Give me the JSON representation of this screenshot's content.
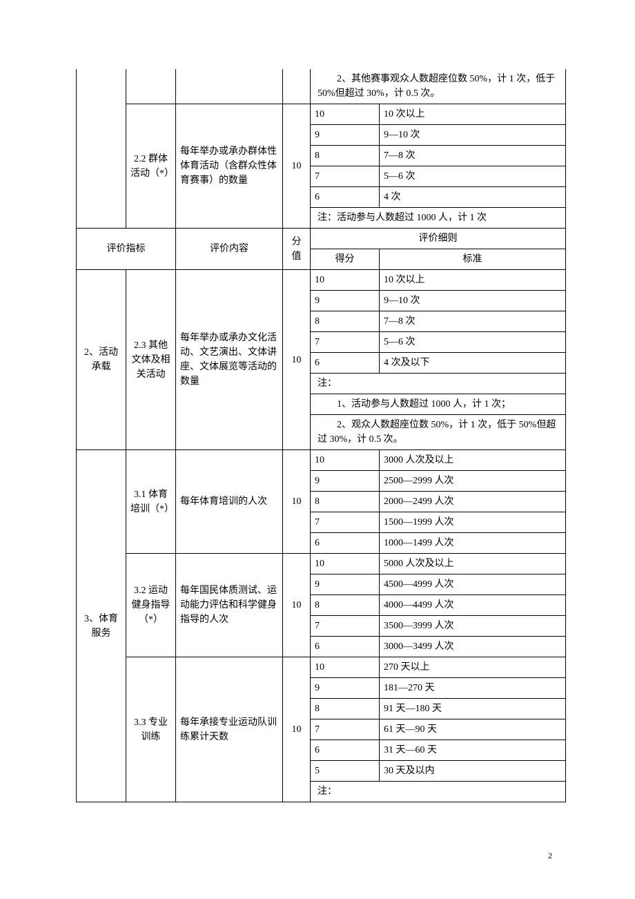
{
  "topNote": "　　2、其他赛事观众人数超座位数 50%，计 1 次，低于 50%但超过 30%，计 0.5 次。",
  "s22": {
    "label": "2.2 群体活动（*）",
    "content": "每年举办或承办群体性体育活动（含群众性体育赛事）的数量",
    "fen": "10",
    "rows": [
      {
        "score": "10",
        "std": "10 次以上"
      },
      {
        "score": "9",
        "std": "9—10 次"
      },
      {
        "score": "8",
        "std": "7—8 次"
      },
      {
        "score": "7",
        "std": "5—6 次"
      },
      {
        "score": "6",
        "std": "4 次"
      }
    ],
    "note": "注：活动参与人数超过 1000 人，计 1 次"
  },
  "hdr": {
    "c1": "评价指标",
    "c3": "评价内容",
    "c4": "分值",
    "c5": "评价细则",
    "c5a": "得分",
    "c5b": "标准"
  },
  "cat2": "2、活动承载",
  "s23": {
    "label": "2.3 其他文体及相关活动",
    "content": "每年举办或承办文化活动、文艺演出、文体讲座、文体展览等活动的数量",
    "fen": "10",
    "rows": [
      {
        "score": "10",
        "std": "10 次以上"
      },
      {
        "score": "9",
        "std": "9—10 次"
      },
      {
        "score": "8",
        "std": "7—8 次"
      },
      {
        "score": "7",
        "std": "5—6 次"
      },
      {
        "score": "6",
        "std": "4 次及以下"
      }
    ],
    "noteHead": "注：",
    "note1": "　　1、活动参与人数超过 1000 人，计 1 次；",
    "note2": "　　2、观众人数超座位数 50%，计 1 次，低于 50%但超过 30%，计 0.5 次。"
  },
  "cat3": "3、体育服务",
  "s31": {
    "label": "3.1 体育培训（*）",
    "content": "每年体育培训的人次",
    "fen": "10",
    "rows": [
      {
        "score": "10",
        "std": "3000 人次及以上"
      },
      {
        "score": "9",
        "std": "2500—2999 人次"
      },
      {
        "score": "8",
        "std": "2000—2499 人次"
      },
      {
        "score": "7",
        "std": "1500—1999 人次"
      },
      {
        "score": "6",
        "std": "1000—1499 人次"
      }
    ]
  },
  "s32": {
    "label": "3.2 运动健身指导（*）",
    "content": "每年国民体质测试、运动能力评估和科学健身指导的人次",
    "fen": "10",
    "rows": [
      {
        "score": "10",
        "std": "5000 人次及以上"
      },
      {
        "score": "9",
        "std": "4500—4999 人次"
      },
      {
        "score": "8",
        "std": "4000—4499 人次"
      },
      {
        "score": "7",
        "std": "3500—3999 人次"
      },
      {
        "score": "6",
        "std": "3000—3499 人次"
      }
    ]
  },
  "s33": {
    "label": "3.3 专业训练",
    "content": "每年承接专业运动队训练累计天数",
    "fen": "10",
    "rows": [
      {
        "score": "10",
        "std": "270 天以上"
      },
      {
        "score": "9",
        "std": "181—270 天"
      },
      {
        "score": "8",
        "std": "91 天—180 天"
      },
      {
        "score": "7",
        "std": "61 天—90 天"
      },
      {
        "score": "6",
        "std": "31 天—60 天"
      },
      {
        "score": "5",
        "std": "30 天及以内"
      }
    ],
    "note": "注："
  },
  "pageNum": "2"
}
